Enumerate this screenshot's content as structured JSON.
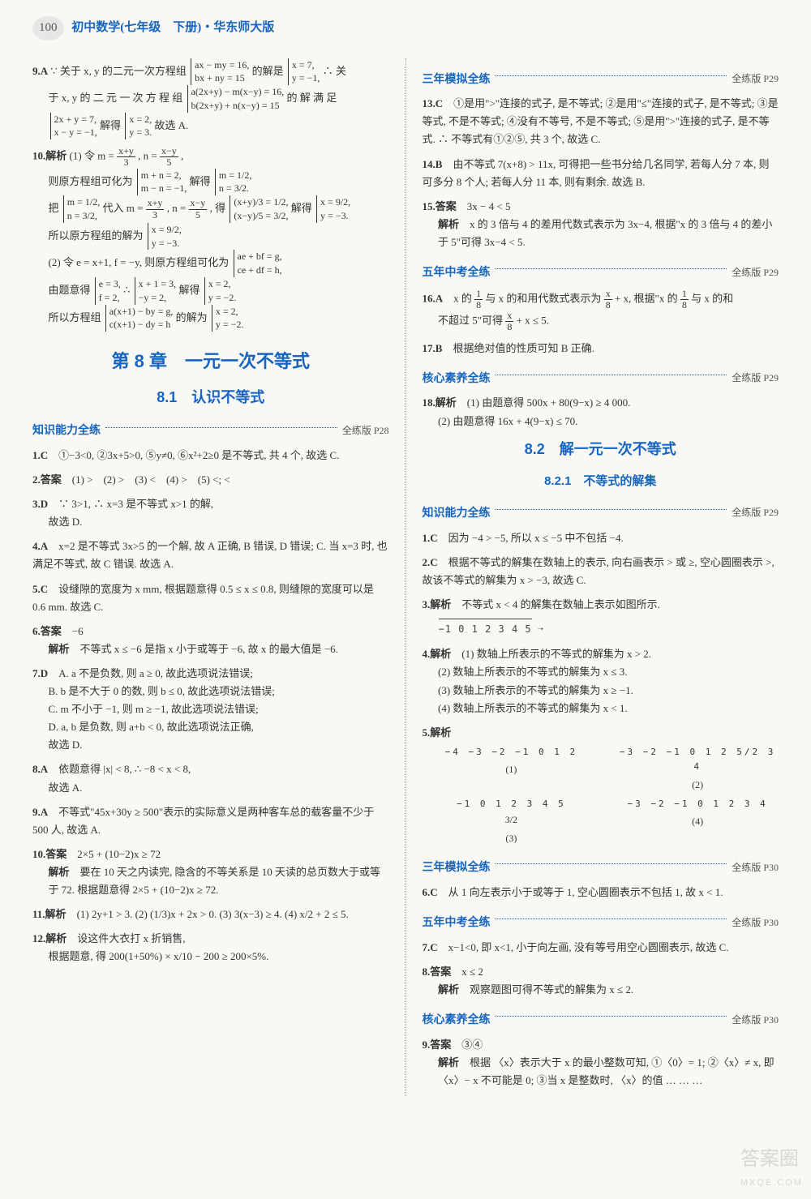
{
  "header": {
    "pageNum": "100",
    "title": "初中数学(七年级　下册)・华东师大版"
  },
  "left": {
    "q9": {
      "label": "9.A",
      "l1": "∵ 关于 x, y 的二元一次方程组",
      "sys1a": "ax − my = 16,",
      "sys1b": "bx + ny = 15",
      "l2": "的解是",
      "sol1a": "x = 7,",
      "sol1b": "y = −1,",
      "l3": "∴ 关",
      "l4": "于 x, y 的 二 元 一 次 方 程 组",
      "sys2a": "a(2x+y) − m(x−y) = 16,",
      "sys2b": "b(2x+y) + n(x−y) = 15",
      "l5": "的 解 满 足",
      "sys3a": "2x + y = 7,",
      "sys3b": "x − y = −1,",
      "l6": "解得",
      "sol2a": "x = 2,",
      "sol2b": "y = 3.",
      "l7": "故选 A."
    },
    "q10": {
      "label": "10.解析",
      "p1a": "(1) 令 m =",
      "p1b": ", n =",
      "p1c": ",",
      "f1n": "x+y",
      "f1d": "3",
      "f2n": "x−y",
      "f2d": "5",
      "l2": "则原方程组可化为",
      "sysAa": "m + n = 2,",
      "sysAb": "m − n = −1,",
      "l3": "解得",
      "solAa": "m = 1/2,",
      "solAb": "n = 3/2.",
      "l4a": "把",
      "l4b": "代入 m =",
      "l4c": ", n =",
      "l4d": ", 得",
      "l4e": "解得",
      "sysBa": "m = 1/2,",
      "sysBb": "n = 3/2,",
      "sysCa": "(x+y)/3 = 1/2,",
      "sysCb": "(x−y)/5 = 3/2,",
      "solCa": "x = 9/2,",
      "solCb": "y = −3.",
      "l5": "所以原方程组的解为",
      "solDa": "x = 9/2,",
      "solDb": "y = −3.",
      "p2": "(2) 令 e = x+1, f = −y, 则原方程组可化为",
      "sysEa": "ae + bf = g,",
      "sysEb": "ce + df = h,",
      "l6": "由题意得",
      "sysFa": "e = 3,",
      "sysFb": "f = 2,",
      "l7": "∴",
      "sysGa": "x + 1 = 3,",
      "sysGb": "−y = 2,",
      "l8": "解得",
      "solGa": "x = 2,",
      "solGb": "y = −2.",
      "l9": "所以方程组",
      "sysHa": "a(x+1) − by = g,",
      "sysHb": "c(x+1) − dy = h",
      "l10": "的解为",
      "solHa": "x = 2,",
      "solHb": "y = −2."
    },
    "chapter": "第 8 章　一元一次不等式",
    "sec81": "8.1　认识不等式",
    "gh1": {
      "label": "知识能力全练",
      "ref": "全练版 P28"
    },
    "q1": {
      "label": "1.C",
      "text": "①−3<0, ②3x+5>0, ⑤y≠0, ⑥x²+2≥0 是不等式, 共 4 个, 故选 C."
    },
    "q2": {
      "label": "2.答案",
      "text": "(1) >　(2) >　(3) <　(4) >　(5) <; <"
    },
    "q3": {
      "label": "3.D",
      "text": "∵ 3>1, ∴ x=3 是不等式 x>1 的解,",
      "l2": "故选 D."
    },
    "q4": {
      "label": "4.A",
      "text": "x=2 是不等式 3x>5 的一个解, 故 A 正确, B 错误, D 错误; C. 当 x=3 时, 也满足不等式, 故 C 错误. 故选 A."
    },
    "q5": {
      "label": "5.C",
      "text": "设缝隙的宽度为 x mm, 根据题意得 0.5 ≤ x ≤ 0.8, 则缝隙的宽度可以是 0.6 mm. 故选 C."
    },
    "q6": {
      "label": "6.答案",
      "ans": "−6",
      "jx": "解析",
      "text": "不等式 x ≤ −6 是指 x 小于或等于 −6, 故 x 的最大值是 −6."
    },
    "q7": {
      "label": "7.D",
      "a": "A. a 不是负数, 则 a ≥ 0, 故此选项说法错误;",
      "b": "B. b 是不大于 0 的数, 则 b ≤ 0, 故此选项说法错误;",
      "c": "C. m 不小于 −1, 则 m ≥ −1, 故此选项说法错误;",
      "d": "D. a, b 是负数, 则 a+b < 0, 故此选项说法正确,",
      "e": "故选 D."
    },
    "q8": {
      "label": "8.A",
      "text": "依题意得 |x| < 8, ∴ −8 < x < 8,",
      "l2": "故选 A."
    },
    "q9b": {
      "label": "9.A",
      "text": "不等式\"45x+30y ≥ 500\"表示的实际意义是两种客车总的载客量不少于 500 人, 故选 A."
    },
    "q10b": {
      "label": "10.答案",
      "ans": "2×5 + (10−2)x ≥ 72",
      "jx": "解析",
      "text": "要在 10 天之内读完, 隐含的不等关系是 10 天读的总页数大于或等于 72. 根据题意得 2×5 + (10−2)x ≥ 72."
    },
    "q11": {
      "label": "11.解析",
      "text": "(1) 2y+1 > 3. (2) (1/3)x + 2x > 0. (3) 3(x−3) ≥ 4. (4) x/2 + 2 ≤ 5."
    },
    "q12": {
      "label": "12.解析",
      "l1": "设这件大衣打 x 折销售,",
      "l2": "根据题意, 得 200(1+50%) × x/10 − 200 ≥ 200×5%."
    }
  },
  "right": {
    "gh1": {
      "label": "三年模拟全练",
      "ref": "全练版 P29"
    },
    "q13": {
      "label": "13.C",
      "text": "①是用\">\"连接的式子, 是不等式; ②是用\"≤\"连接的式子, 是不等式; ③是等式, 不是不等式; ④没有不等号, 不是不等式; ⑤是用\">\"连接的式子, 是不等式. ∴ 不等式有①②⑤, 共 3 个, 故选 C."
    },
    "q14": {
      "label": "14.B",
      "text": "由不等式 7(x+8) > 11x, 可得把一些书分给几名同学, 若每人分 7 本, 则可多分 8 个人; 若每人分 11 本, 则有剩余. 故选 B."
    },
    "q15": {
      "label": "15.答案",
      "ans": "3x − 4 < 5",
      "jx": "解析",
      "text": "x 的 3 倍与 4 的差用代数式表示为 3x−4, 根据\"x 的 3 倍与 4 的差小于 5\"可得 3x−4 < 5."
    },
    "gh2": {
      "label": "五年中考全练",
      "ref": "全练版 P29"
    },
    "q16": {
      "label": "16.A",
      "t1": "x 的",
      "t2": "与 x 的和用代数式表示为",
      "t3": "+ x, 根据\"x 的",
      "t4": "与 x 的和",
      "f1n": "1",
      "f1d": "8",
      "f2n": "x",
      "f2d": "8",
      "l2a": "不超过 5\"可得",
      "l2b": "+ x ≤ 5."
    },
    "q17": {
      "label": "17.B",
      "text": "根据绝对值的性质可知 B 正确."
    },
    "gh3": {
      "label": "核心素养全练",
      "ref": "全练版 P29"
    },
    "q18": {
      "label": "18.解析",
      "l1": "(1) 由题意得 500x + 80(9−x) ≥ 4 000.",
      "l2": "(2) 由题意得 16x + 4(9−x) ≤ 70."
    },
    "sec82": "8.2　解一元一次不等式",
    "sub821": "8.2.1　不等式的解集",
    "gh4": {
      "label": "知识能力全练",
      "ref": "全练版 P29"
    },
    "q1": {
      "label": "1.C",
      "text": "因为 −4 > −5, 所以 x ≤ −5 中不包括 −4."
    },
    "q2": {
      "label": "2.C",
      "text": "根据不等式的解集在数轴上的表示, 向右画表示 > 或 ≥, 空心圆圈表示 >, 故该不等式的解集为 x > −3, 故选 C."
    },
    "q3": {
      "label": "3.解析",
      "text": "不等式 x < 4 的解集在数轴上表示如图所示.",
      "axis": "−1  0  1  2  3  4  5"
    },
    "q4": {
      "label": "4.解析",
      "a": "(1) 数轴上所表示的不等式的解集为 x > 2.",
      "b": "(2) 数轴上所表示的不等式的解集为 x ≤ 3.",
      "c": "(3) 数轴上所表示的不等式的解集为 x ≥ −1.",
      "d": "(4) 数轴上所表示的不等式的解集为 x < 1."
    },
    "q5": {
      "label": "5.解析",
      "nl1": {
        "nums": "−4 −3 −2 −1  0  1  2",
        "tag": "(1)"
      },
      "nl2": {
        "nums": "−3 −2 −1  0  1  2 5/2 3  4",
        "tag": "(2)"
      },
      "nl3": {
        "nums": "−1  0  1  2  3  4  5",
        "tag": "(3)",
        "mark": "3/2"
      },
      "nl4": {
        "nums": "−3 −2 −1  0  1  2  3  4",
        "tag": "(4)"
      }
    },
    "gh5": {
      "label": "三年模拟全练",
      "ref": "全练版 P30"
    },
    "q6": {
      "label": "6.C",
      "text": "从 1 向左表示小于或等于 1, 空心圆圈表示不包括 1, 故 x < 1."
    },
    "gh6": {
      "label": "五年中考全练",
      "ref": "全练版 P30"
    },
    "q7": {
      "label": "7.C",
      "text": "x−1<0, 即 x<1, 小于向左画, 没有等号用空心圆圈表示, 故选 C."
    },
    "q8": {
      "label": "8.答案",
      "ans": "x ≤ 2",
      "jx": "解析",
      "text": "观察题图可得不等式的解集为 x ≤ 2."
    },
    "gh7": {
      "label": "核心素养全练",
      "ref": "全练版 P30"
    },
    "q9": {
      "label": "9.答案",
      "ans": "③④",
      "jx": "解析",
      "text": "根据 〈x〉表示大于 x 的最小整数可知, ①〈0〉= 1; ②〈x〉≠ x, 即 〈x〉− x 不可能是 0; ③当 x 是整数时, 〈x〉的值 … … …"
    }
  },
  "watermark": {
    "main": "答案圈",
    "sub": "MXQE.COM"
  }
}
